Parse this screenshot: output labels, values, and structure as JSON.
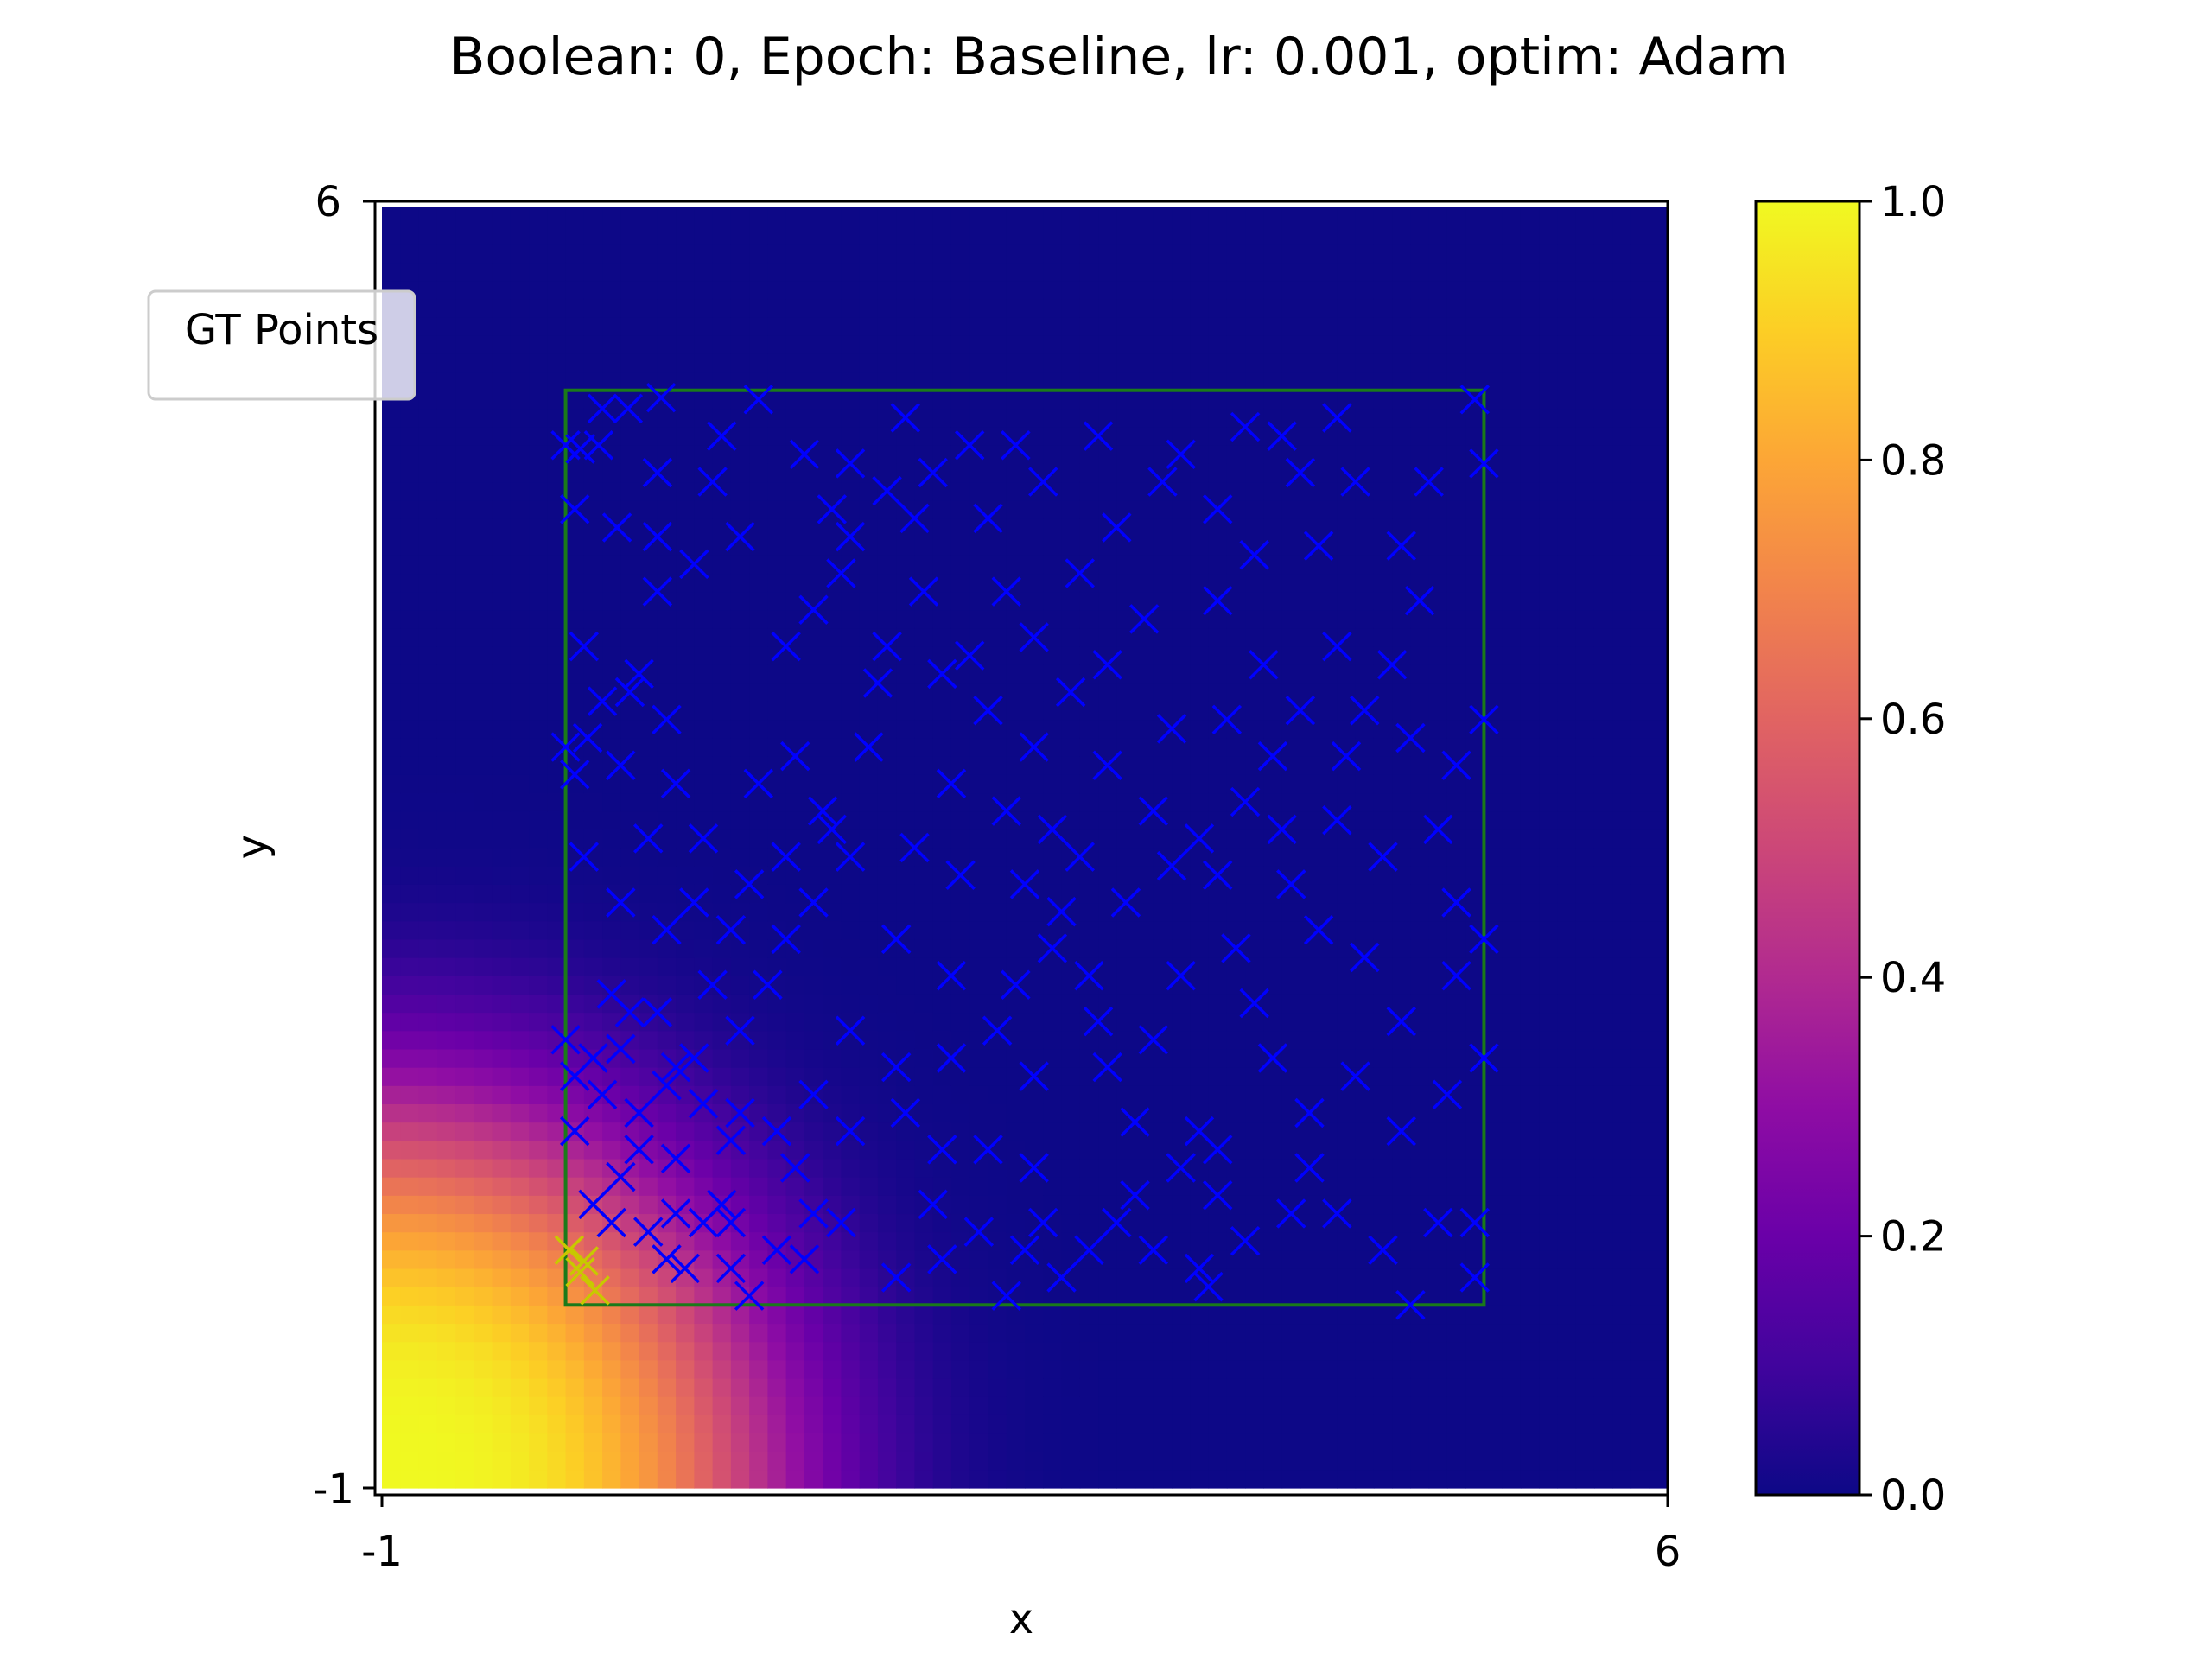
{
  "chart_data": {
    "type": "heatmap",
    "title": "Boolean: 0, Epoch: Baseline, lr: 0.001, optim: Adam",
    "xlabel": "x",
    "ylabel": "y",
    "xlim": [
      -1,
      6
    ],
    "ylim": [
      -1,
      6
    ],
    "x_ticks": [
      "-1",
      "6"
    ],
    "y_ticks": [
      "-1",
      "6"
    ],
    "colorbar": {
      "colormap": "plasma",
      "range": [
        0.0,
        1.0
      ],
      "ticks": [
        "0.0",
        "0.2",
        "0.4",
        "0.6",
        "0.8",
        "1.0"
      ]
    },
    "heatmap": {
      "description_values": "value ≈ 1 at lower-left corner (-1,-1), decaying radially to 0 by distance ≈ 3.6",
      "peak": 1.0,
      "center": [
        -1,
        -1
      ]
    },
    "box": {
      "x_range": [
        0,
        5
      ],
      "y_range": [
        0,
        5
      ],
      "color": "#1a7a1a"
    },
    "legend": {
      "label": "GT Points",
      "placement": "upper-left"
    },
    "scatter_marker": "x",
    "positive_color": "#c8c800",
    "negative_color": "#0000ff",
    "positive_points": [
      [
        0.02,
        0.3
      ],
      [
        0.1,
        0.24
      ],
      [
        0.16,
        0.08
      ],
      [
        0.08,
        0.18
      ]
    ],
    "negative_points": [
      [
        0.0,
        4.7
      ],
      [
        0.08,
        4.68
      ],
      [
        0.18,
        4.7
      ],
      [
        0.34,
        4.9
      ],
      [
        0.52,
        4.96
      ],
      [
        0.5,
        4.55
      ],
      [
        0.8,
        4.5
      ],
      [
        0.28,
        4.25
      ],
      [
        0.5,
        4.2
      ],
      [
        0.1,
        3.6
      ],
      [
        0.4,
        3.45
      ],
      [
        0.55,
        3.2
      ],
      [
        0.2,
        3.3
      ],
      [
        0.12,
        3.1
      ],
      [
        0.05,
        2.9
      ],
      [
        0.3,
        2.95
      ],
      [
        0.45,
        2.55
      ],
      [
        0.1,
        2.45
      ],
      [
        0.3,
        2.2
      ],
      [
        0.55,
        2.05
      ],
      [
        0.7,
        2.2
      ],
      [
        0.9,
        2.05
      ],
      [
        1.0,
        2.3
      ],
      [
        1.2,
        2.45
      ],
      [
        0.8,
        1.75
      ],
      [
        0.35,
        1.6
      ],
      [
        0.15,
        1.35
      ],
      [
        0.05,
        1.25
      ],
      [
        0.2,
        1.15
      ],
      [
        0.4,
        1.05
      ],
      [
        0.55,
        1.2
      ],
      [
        0.7,
        1.35
      ],
      [
        0.75,
        1.1
      ],
      [
        0.9,
        0.9
      ],
      [
        0.6,
        0.8
      ],
      [
        0.3,
        0.7
      ],
      [
        0.15,
        0.55
      ],
      [
        0.25,
        0.45
      ],
      [
        0.45,
        0.4
      ],
      [
        0.6,
        0.5
      ],
      [
        0.75,
        0.45
      ],
      [
        0.9,
        0.45
      ],
      [
        0.55,
        0.25
      ],
      [
        0.65,
        0.2
      ],
      [
        0.9,
        0.2
      ],
      [
        1.15,
        0.3
      ],
      [
        1.3,
        0.25
      ],
      [
        1.35,
        0.5
      ],
      [
        1.5,
        0.45
      ],
      [
        1.25,
        0.75
      ],
      [
        0.95,
        1.5
      ],
      [
        1.1,
        1.75
      ],
      [
        1.2,
        2.0
      ],
      [
        1.35,
        2.2
      ],
      [
        1.55,
        2.45
      ],
      [
        1.4,
        2.7
      ],
      [
        1.25,
        3.0
      ],
      [
        1.2,
        3.6
      ],
      [
        1.35,
        3.8
      ],
      [
        1.5,
        4.0
      ],
      [
        1.55,
        4.2
      ],
      [
        1.45,
        4.35
      ],
      [
        1.75,
        4.45
      ],
      [
        1.9,
        4.3
      ],
      [
        2.0,
        4.55
      ],
      [
        2.2,
        4.7
      ],
      [
        2.45,
        4.7
      ],
      [
        1.75,
        3.6
      ],
      [
        1.7,
        3.4
      ],
      [
        2.05,
        3.45
      ],
      [
        2.2,
        3.55
      ],
      [
        2.3,
        3.25
      ],
      [
        2.55,
        3.05
      ],
      [
        2.1,
        2.85
      ],
      [
        2.4,
        2.7
      ],
      [
        2.65,
        2.6
      ],
      [
        1.9,
        2.5
      ],
      [
        2.15,
        2.35
      ],
      [
        2.5,
        2.3
      ],
      [
        1.8,
        2.0
      ],
      [
        2.1,
        1.8
      ],
      [
        2.45,
        1.75
      ],
      [
        2.65,
        1.95
      ],
      [
        2.85,
        1.8
      ],
      [
        1.55,
        1.5
      ],
      [
        1.8,
        1.3
      ],
      [
        2.1,
        1.35
      ],
      [
        2.35,
        1.5
      ],
      [
        2.55,
        1.25
      ],
      [
        1.35,
        1.15
      ],
      [
        1.55,
        0.95
      ],
      [
        1.85,
        1.05
      ],
      [
        2.05,
        0.85
      ],
      [
        2.3,
        0.85
      ],
      [
        2.55,
        0.75
      ],
      [
        2.0,
        0.55
      ],
      [
        2.25,
        0.4
      ],
      [
        2.5,
        0.3
      ],
      [
        2.7,
        0.15
      ],
      [
        2.05,
        0.25
      ],
      [
        2.4,
        0.05
      ],
      [
        2.85,
        0.3
      ],
      [
        3.0,
        0.45
      ],
      [
        3.2,
        0.3
      ],
      [
        3.1,
        0.6
      ],
      [
        3.35,
        0.75
      ],
      [
        3.45,
        0.95
      ],
      [
        3.1,
        1.0
      ],
      [
        2.95,
        1.3
      ],
      [
        3.2,
        1.45
      ],
      [
        3.35,
        1.8
      ],
      [
        3.65,
        1.95
      ],
      [
        3.55,
        2.35
      ],
      [
        3.45,
        2.55
      ],
      [
        3.2,
        2.7
      ],
      [
        2.95,
        2.95
      ],
      [
        3.3,
        3.15
      ],
      [
        3.6,
        3.2
      ],
      [
        3.85,
        3.0
      ],
      [
        4.0,
        3.25
      ],
      [
        3.8,
        3.5
      ],
      [
        3.55,
        3.85
      ],
      [
        3.15,
        3.75
      ],
      [
        2.95,
        3.5
      ],
      [
        2.8,
        4.0
      ],
      [
        3.0,
        4.25
      ],
      [
        3.25,
        4.5
      ],
      [
        3.55,
        4.35
      ],
      [
        3.75,
        4.1
      ],
      [
        4.0,
        4.55
      ],
      [
        4.2,
        4.85
      ],
      [
        4.3,
        4.5
      ],
      [
        4.55,
        4.15
      ],
      [
        4.7,
        4.5
      ],
      [
        4.95,
        4.95
      ],
      [
        5.0,
        4.6
      ],
      [
        4.65,
        3.85
      ],
      [
        4.5,
        3.5
      ],
      [
        4.2,
        3.6
      ],
      [
        4.35,
        3.25
      ],
      [
        4.6,
        3.1
      ],
      [
        4.85,
        2.95
      ],
      [
        5.0,
        3.2
      ],
      [
        4.75,
        2.6
      ],
      [
        4.45,
        2.45
      ],
      [
        4.2,
        2.65
      ],
      [
        3.95,
        2.3
      ],
      [
        4.1,
        2.05
      ],
      [
        4.35,
        1.9
      ],
      [
        4.55,
        1.55
      ],
      [
        4.85,
        1.8
      ],
      [
        5.0,
        1.35
      ],
      [
        4.8,
        1.15
      ],
      [
        4.55,
        0.95
      ],
      [
        4.3,
        1.25
      ],
      [
        4.05,
        1.05
      ],
      [
        3.85,
        1.35
      ],
      [
        3.75,
        1.65
      ],
      [
        3.55,
        0.85
      ],
      [
        3.7,
        0.35
      ],
      [
        3.95,
        0.5
      ],
      [
        4.2,
        0.5
      ],
      [
        4.45,
        0.3
      ],
      [
        4.6,
        0.0
      ],
      [
        4.75,
        0.45
      ],
      [
        4.95,
        0.45
      ],
      [
        3.5,
        0.1
      ],
      [
        3.45,
        0.2
      ],
      [
        2.9,
        1.55
      ],
      [
        2.7,
        2.15
      ],
      [
        2.8,
        2.45
      ],
      [
        3.05,
        2.2
      ],
      [
        3.3,
        2.4
      ],
      [
        3.7,
        2.75
      ],
      [
        3.9,
        2.6
      ],
      [
        4.25,
        3.0
      ],
      [
        4.1,
        4.15
      ],
      [
        3.9,
        4.75
      ],
      [
        3.7,
        4.8
      ],
      [
        3.35,
        4.65
      ],
      [
        2.9,
        4.75
      ],
      [
        2.6,
        4.5
      ],
      [
        2.3,
        4.3
      ],
      [
        2.4,
        3.9
      ],
      [
        2.55,
        3.65
      ],
      [
        2.75,
        3.35
      ],
      [
        1.95,
        3.9
      ],
      [
        1.65,
        3.05
      ],
      [
        1.45,
        2.6
      ],
      [
        1.05,
        2.85
      ],
      [
        0.75,
        2.55
      ],
      [
        0.6,
        2.85
      ],
      [
        0.35,
        3.35
      ],
      [
        0.5,
        3.9
      ],
      [
        0.7,
        4.05
      ],
      [
        0.95,
        4.2
      ],
      [
        0.85,
        4.75
      ],
      [
        1.05,
        4.95
      ],
      [
        1.3,
        4.65
      ],
      [
        1.55,
        4.6
      ],
      [
        1.85,
        4.85
      ],
      [
        0.2,
        4.9
      ],
      [
        0.05,
        4.35
      ],
      [
        0.0,
        3.05
      ],
      [
        0.95,
        1.05
      ],
      [
        1.15,
        0.95
      ],
      [
        0.85,
        0.55
      ],
      [
        0.4,
        0.85
      ],
      [
        0.05,
        0.95
      ],
      [
        0.3,
        1.4
      ],
      [
        0.5,
        1.6
      ],
      [
        0.6,
        1.3
      ],
      [
        0.25,
        1.7
      ],
      [
        0.0,
        1.45
      ],
      [
        1.0,
        0.05
      ],
      [
        1.8,
        0.15
      ],
      [
        2.6,
        0.45
      ],
      [
        3.55,
        0.6
      ],
      [
        4.05,
        0.75
      ],
      [
        4.95,
        0.15
      ],
      [
        5.0,
        2.0
      ],
      [
        4.85,
        2.2
      ]
    ]
  }
}
